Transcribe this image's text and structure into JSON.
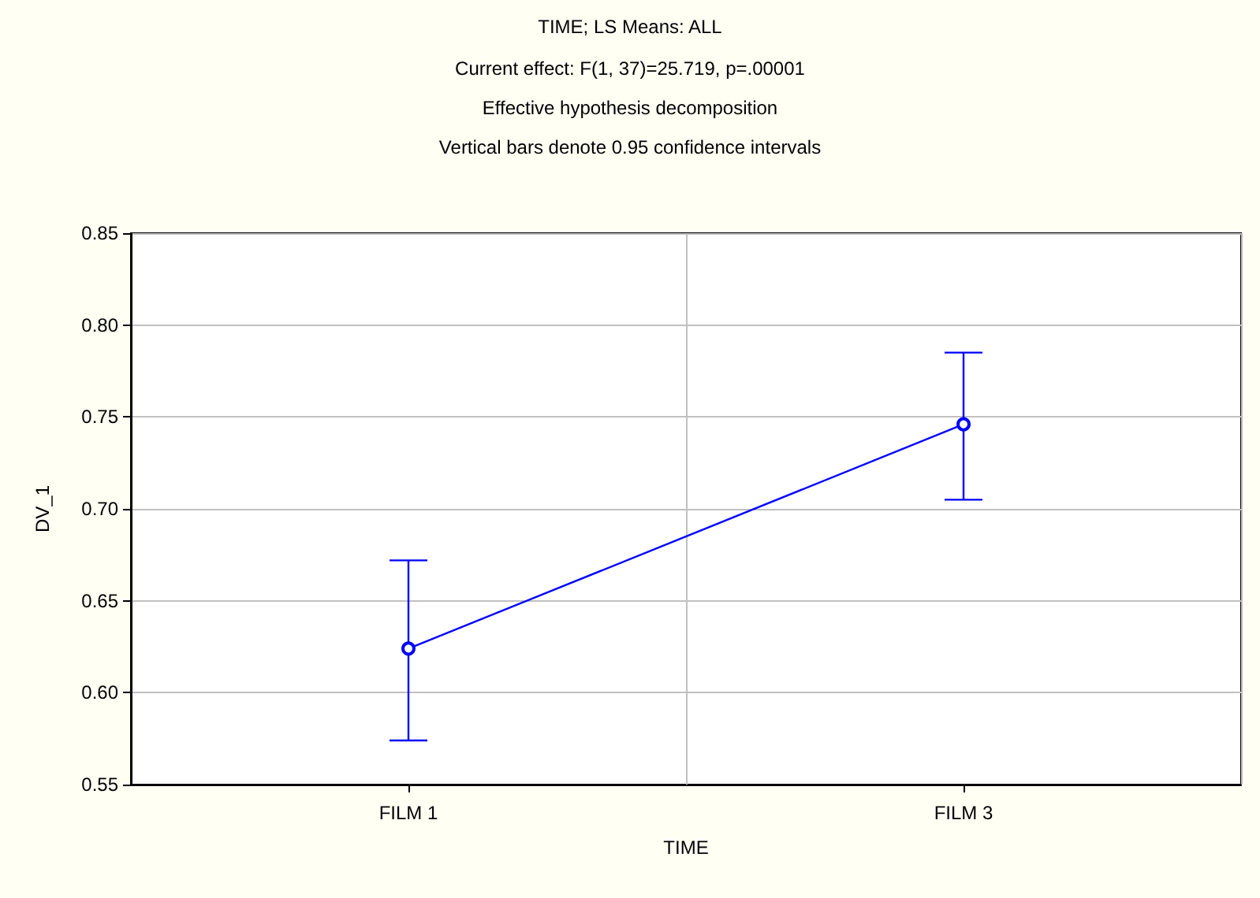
{
  "chart_data": {
    "type": "line",
    "title": "TIME; LS Means: ALL",
    "subtitle": "Current effect: F(1, 37)=25.719, p=.00001\nEffective hypothesis decomposition\nVertical bars denote 0.95 confidence intervals",
    "xlabel": "TIME",
    "ylabel": "DV_1",
    "categories": [
      "FILM 1",
      "FILM 3"
    ],
    "series": [
      {
        "color": "#0000ff",
        "values": [
          0.624,
          0.746
        ],
        "errors": [
          [
            0.574,
            0.672
          ],
          [
            0.705,
            0.785
          ]
        ]
      }
    ],
    "ylim": [
      0.55,
      0.85
    ],
    "yticks": [
      0.55,
      {
        "value": 0.6,
        "label": "0.60"
      },
      0.65,
      {
        "value": 0.7,
        "label": "0.70"
      },
      0.75,
      {
        "value": 0.8,
        "label": "0.80"
      },
      0.85
    ],
    "grid": true,
    "marker": "circle",
    "line_style": "solid"
  }
}
